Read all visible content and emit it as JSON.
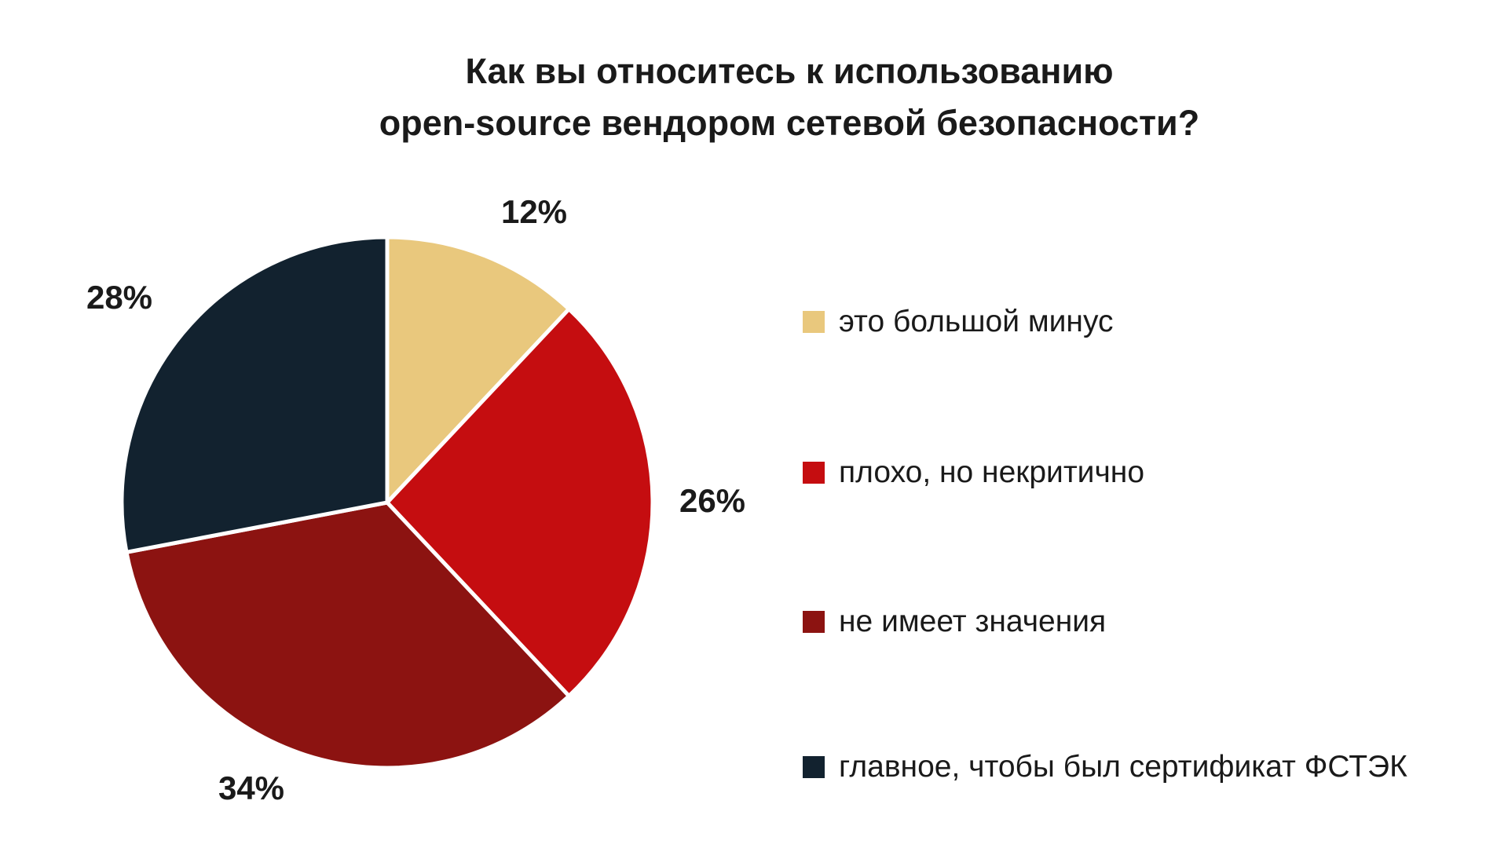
{
  "title": {
    "line1": "Как вы относитесь к использованию",
    "line2": "open-source вендором сетевой безопасности?"
  },
  "chart_data": {
    "type": "pie",
    "title": "Как вы относитесь к использованию open-source вендором сетевой безопасности?",
    "start_angle_deg": 0,
    "direction": "clockwise",
    "legend_position": "right",
    "slice_border_color": "#ffffff",
    "background_color": "#ffffff",
    "text_color": "#1a1a1a",
    "slices": [
      {
        "label": "это большой минус",
        "value_pct": 12,
        "pct_text": "12%",
        "color": "#e9c87d"
      },
      {
        "label": "плохо, но некритично",
        "value_pct": 26,
        "pct_text": "26%",
        "color": "#c50d10"
      },
      {
        "label": "не имеет значения",
        "value_pct": 34,
        "pct_text": "34%",
        "color": "#8c1311"
      },
      {
        "label": "главное, чтобы был сертификат ФСТЭК",
        "value_pct": 28,
        "pct_text": "28%",
        "color": "#12222f"
      }
    ]
  }
}
